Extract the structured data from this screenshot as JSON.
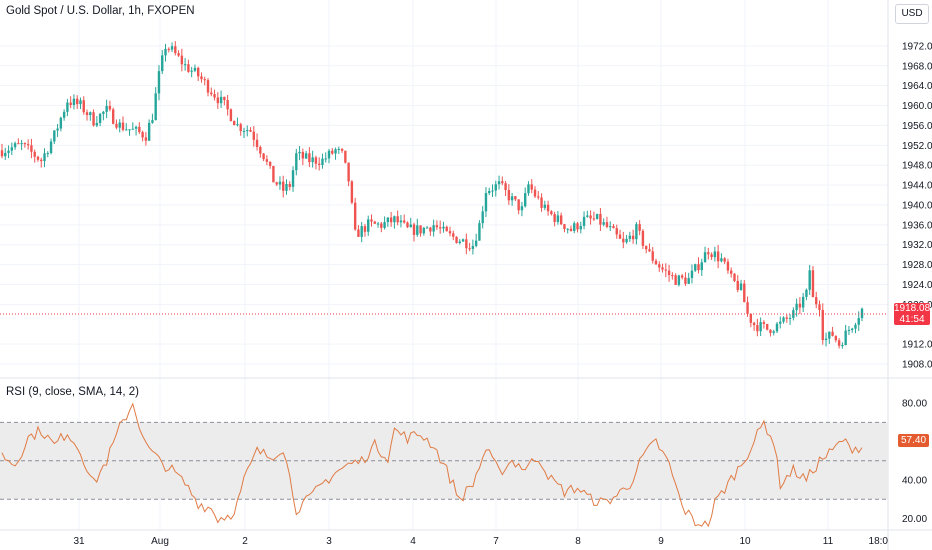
{
  "header": {
    "title": "Gold Spot / U.S. Dollar, 1h, FXOPEN",
    "currency": "USD"
  },
  "colors": {
    "up": "#26a69a",
    "down": "#ef5350",
    "rsi_line": "#e07b45",
    "rsi_band": "#ececec",
    "last_price_bg": "#f23645"
  },
  "last_price": {
    "value": "1918.08",
    "countdown": "41:54"
  },
  "x_axis": {
    "ticks": [
      "31",
      "Aug",
      "2",
      "3",
      "4",
      "7",
      "8",
      "9",
      "10",
      "11",
      "18:0"
    ]
  },
  "chart_data": [
    {
      "type": "candlestick",
      "y_ticks": [
        "1972.00",
        "1968.00",
        "1964.00",
        "1960.00",
        "1956.00",
        "1952.00",
        "1948.00",
        "1944.00",
        "1940.00",
        "1936.00",
        "1932.00",
        "1928.00",
        "1924.00",
        "1920.00",
        "1912.00",
        "1908.00"
      ],
      "ylim": [
        1906,
        1976
      ],
      "close_path": [
        [
          0,
          1951
        ],
        [
          6,
          1952
        ],
        [
          12,
          1949
        ],
        [
          16,
          1954
        ],
        [
          20,
          1961
        ],
        [
          24,
          1960
        ],
        [
          28,
          1957
        ],
        [
          32,
          1959
        ],
        [
          36,
          1956
        ],
        [
          40,
          1955
        ],
        [
          44,
          1954
        ],
        [
          46,
          1958
        ],
        [
          48,
          1966
        ],
        [
          50,
          1972
        ],
        [
          52,
          1971
        ],
        [
          56,
          1968
        ],
        [
          60,
          1966
        ],
        [
          64,
          1963
        ],
        [
          68,
          1960
        ],
        [
          72,
          1956
        ],
        [
          76,
          1955
        ],
        [
          80,
          1950
        ],
        [
          83,
          1945
        ],
        [
          86,
          1943
        ],
        [
          88,
          1944
        ],
        [
          90,
          1950
        ],
        [
          94,
          1949
        ],
        [
          98,
          1949
        ],
        [
          102,
          1951
        ],
        [
          104,
          1950
        ],
        [
          106,
          1945
        ],
        [
          108,
          1934
        ],
        [
          112,
          1936
        ],
        [
          116,
          1936
        ],
        [
          120,
          1937
        ],
        [
          124,
          1935
        ],
        [
          128,
          1935
        ],
        [
          132,
          1936
        ],
        [
          136,
          1934
        ],
        [
          140,
          1933
        ],
        [
          144,
          1932
        ],
        [
          146,
          1936
        ],
        [
          148,
          1943
        ],
        [
          152,
          1944
        ],
        [
          156,
          1941
        ],
        [
          159,
          1939
        ],
        [
          161,
          1944
        ],
        [
          163,
          1942
        ],
        [
          166,
          1939
        ],
        [
          170,
          1937
        ],
        [
          174,
          1935
        ],
        [
          178,
          1937
        ],
        [
          182,
          1937
        ],
        [
          186,
          1935
        ],
        [
          190,
          1932
        ],
        [
          194,
          1935
        ],
        [
          198,
          1930
        ],
        [
          202,
          1927
        ],
        [
          206,
          1925
        ],
        [
          210,
          1925
        ],
        [
          213,
          1928
        ],
        [
          216,
          1931
        ],
        [
          220,
          1929
        ],
        [
          223,
          1925
        ],
        [
          226,
          1923
        ],
        [
          228,
          1918
        ],
        [
          230,
          1916
        ],
        [
          234,
          1915
        ],
        [
          238,
          1916
        ],
        [
          242,
          1918
        ],
        [
          244,
          1920
        ],
        [
          246,
          1922
        ],
        [
          247,
          1927
        ],
        [
          248,
          1921
        ],
        [
          250,
          1920
        ],
        [
          251,
          1914
        ],
        [
          252,
          1913
        ],
        [
          254,
          1914
        ],
        [
          256,
          1912
        ],
        [
          258,
          1914
        ],
        [
          262,
          1918
        ],
        [
          263,
          1919
        ]
      ]
    },
    {
      "type": "line",
      "title": "RSI (9, close, SMA, 14, 2)",
      "y_ticks": [
        "80.00",
        "60.00",
        "40.00",
        "20.00"
      ],
      "ylim": [
        15,
        90
      ],
      "bands": [
        30,
        50,
        70
      ],
      "last_value": "57.40",
      "series": [
        {
          "points": [
            [
              0,
              53
            ],
            [
              4,
              48
            ],
            [
              8,
              62
            ],
            [
              12,
              66
            ],
            [
              16,
              58
            ],
            [
              20,
              65
            ],
            [
              24,
              55
            ],
            [
              28,
              38
            ],
            [
              32,
              50
            ],
            [
              36,
              67
            ],
            [
              40,
              80
            ],
            [
              44,
              58
            ],
            [
              48,
              50
            ],
            [
              52,
              45
            ],
            [
              56,
              38
            ],
            [
              60,
              28
            ],
            [
              64,
              25
            ],
            [
              66,
              20
            ],
            [
              70,
              22
            ],
            [
              72,
              28
            ],
            [
              74,
              40
            ],
            [
              78,
              55
            ],
            [
              82,
              52
            ],
            [
              86,
              57
            ],
            [
              90,
              25
            ],
            [
              94,
              30
            ],
            [
              98,
              38
            ],
            [
              102,
              44
            ],
            [
              106,
              48
            ],
            [
              110,
              50
            ],
            [
              114,
              58
            ],
            [
              118,
              52
            ],
            [
              120,
              66
            ],
            [
              124,
              62
            ],
            [
              128,
              64
            ],
            [
              132,
              58
            ],
            [
              136,
              45
            ],
            [
              140,
              30
            ],
            [
              144,
              38
            ],
            [
              148,
              56
            ],
            [
              152,
              44
            ],
            [
              156,
              50
            ],
            [
              160,
              46
            ],
            [
              164,
              52
            ],
            [
              168,
              40
            ],
            [
              172,
              34
            ],
            [
              176,
              36
            ],
            [
              180,
              30
            ],
            [
              184,
              28
            ],
            [
              188,
              32
            ],
            [
              192,
              38
            ],
            [
              196,
              52
            ],
            [
              200,
              60
            ],
            [
              204,
              48
            ],
            [
              208,
              26
            ],
            [
              212,
              18
            ],
            [
              216,
              16
            ],
            [
              218,
              28
            ],
            [
              222,
              38
            ],
            [
              226,
              48
            ],
            [
              230,
              60
            ],
            [
              233,
              70
            ],
            [
              236,
              60
            ],
            [
              238,
              38
            ],
            [
              242,
              45
            ],
            [
              246,
              40
            ],
            [
              250,
              50
            ],
            [
              254,
              55
            ],
            [
              257,
              61
            ],
            [
              259,
              57
            ]
          ]
        }
      ]
    }
  ]
}
